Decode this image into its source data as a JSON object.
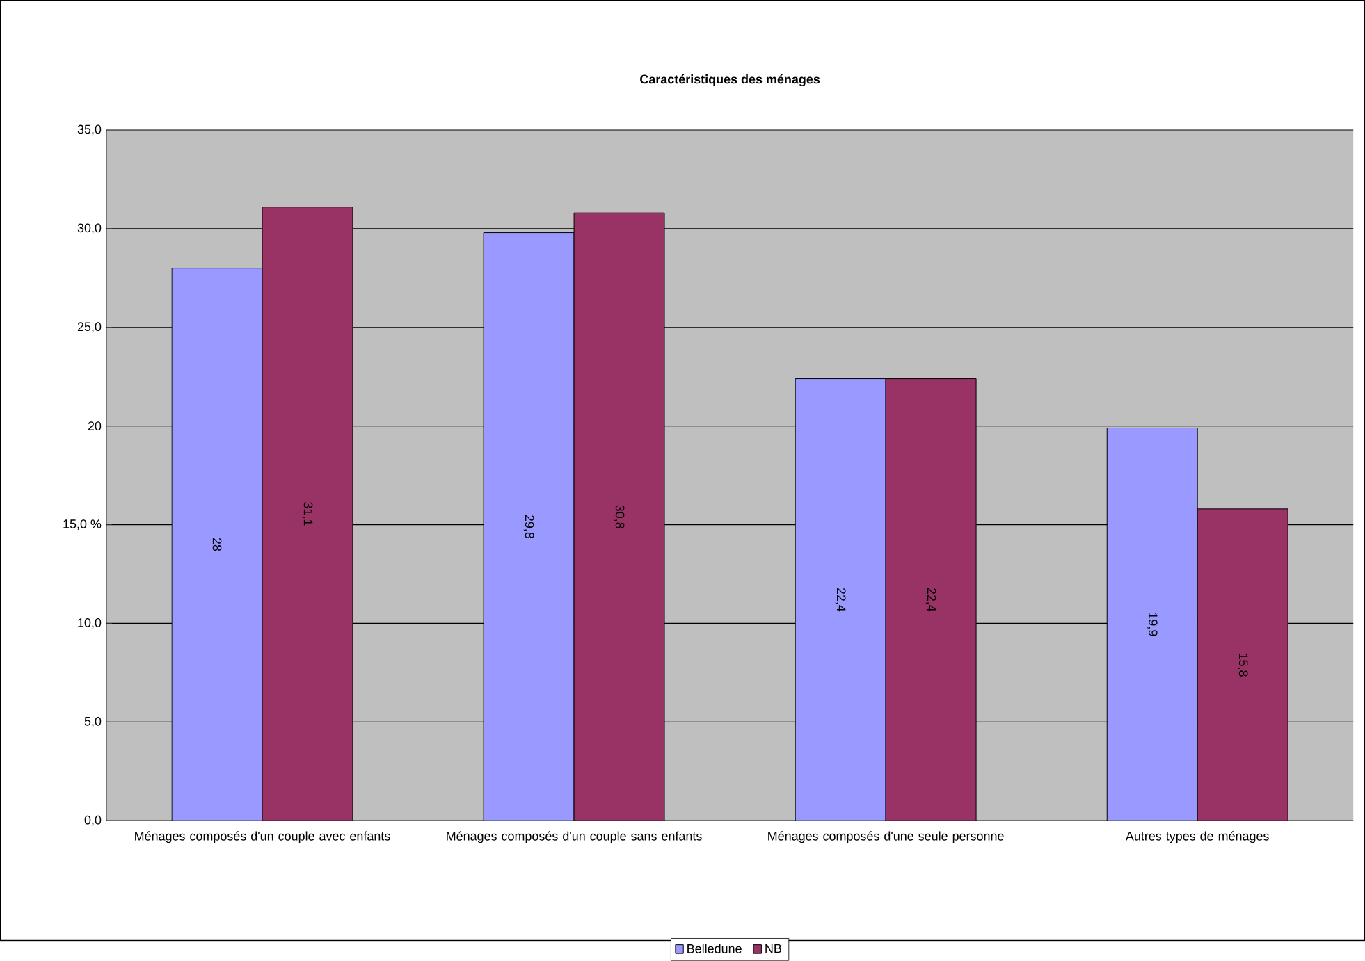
{
  "chart_data": {
    "type": "bar",
    "title": "Caractéristiques des ménages",
    "categories": [
      "Ménages composés d'un couple avec enfants",
      "Ménages composés d'un couple sans enfants",
      "Ménages composés d'une seule personne",
      "Autres types de ménages"
    ],
    "series": [
      {
        "name": "Belledune",
        "color": "#9999ff",
        "values": [
          28,
          29.8,
          22.4,
          19.9
        ],
        "value_labels": [
          "28",
          "29,8",
          "22,4",
          "19,9"
        ]
      },
      {
        "name": "NB",
        "color": "#993366",
        "values": [
          31.1,
          30.8,
          22.4,
          15.8
        ],
        "value_labels": [
          "31,1",
          "30,8",
          "22,4",
          "15,8"
        ]
      }
    ],
    "ylim": [
      0,
      35
    ],
    "yticks": [
      {
        "value": 0,
        "label": "0,0"
      },
      {
        "value": 5,
        "label": "5,0"
      },
      {
        "value": 10,
        "label": "10,0"
      },
      {
        "value": 15,
        "label": "15,0 %"
      },
      {
        "value": 20,
        "label": "20"
      },
      {
        "value": 25,
        "label": "25,0"
      },
      {
        "value": 30,
        "label": "30,0"
      },
      {
        "value": 35,
        "label": "35,0"
      }
    ],
    "grid": "y",
    "legend": "bottom"
  }
}
